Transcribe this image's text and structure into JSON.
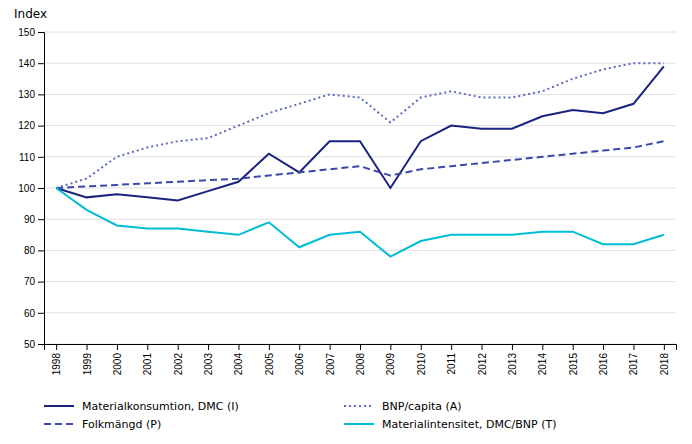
{
  "chart_data": {
    "type": "line",
    "ylabel": "Index",
    "x": [
      1998,
      1999,
      2000,
      2001,
      2002,
      2003,
      2004,
      2005,
      2006,
      2007,
      2008,
      2009,
      2010,
      2011,
      2012,
      2013,
      2014,
      2015,
      2016,
      2017,
      2018
    ],
    "xlim": [
      1997.6,
      2018.4
    ],
    "xticks": [
      1998,
      1999,
      2000,
      2001,
      2002,
      2003,
      2004,
      2005,
      2006,
      2007,
      2008,
      2009,
      2010,
      2011,
      2012,
      2013,
      2014,
      2015,
      2016,
      2017,
      2018
    ],
    "ylim": [
      50,
      150
    ],
    "yticks": [
      50,
      60,
      70,
      80,
      90,
      100,
      110,
      120,
      130,
      140,
      150
    ],
    "grid": true,
    "legend": "bottom",
    "series": [
      {
        "name": "Materialkonsumtion, DMC (I)",
        "color": "#1a237e",
        "line_style": "solid",
        "values": [
          100,
          97,
          98,
          97,
          96,
          99,
          102,
          111,
          105,
          115,
          115,
          100,
          115,
          120,
          119,
          119,
          123,
          125,
          124,
          127,
          139
        ]
      },
      {
        "name": "Folkmängd (P)",
        "color": "#3949ab",
        "line_style": "dashed",
        "values": [
          100,
          100.5,
          101,
          101.5,
          102,
          102.5,
          103,
          104,
          105,
          106,
          107,
          104,
          106,
          107,
          108,
          109,
          110,
          111,
          112,
          113,
          115
        ]
      },
      {
        "name": "BNP/capita (A)",
        "color": "#5c6bc0",
        "line_style": "dotted",
        "values": [
          100,
          103,
          110,
          113,
          115,
          116,
          120,
          124,
          127,
          130,
          129,
          121,
          129,
          131,
          129,
          129,
          131,
          135,
          138,
          140,
          140
        ]
      },
      {
        "name": "Materialintensitet, DMC/BNP (T)",
        "color": "#00bcd4",
        "line_style": "solid",
        "values": [
          100,
          93,
          88,
          87,
          87,
          86,
          85,
          89,
          81,
          85,
          86,
          78,
          83,
          85,
          85,
          85,
          86,
          86,
          82,
          82,
          85
        ]
      }
    ]
  }
}
